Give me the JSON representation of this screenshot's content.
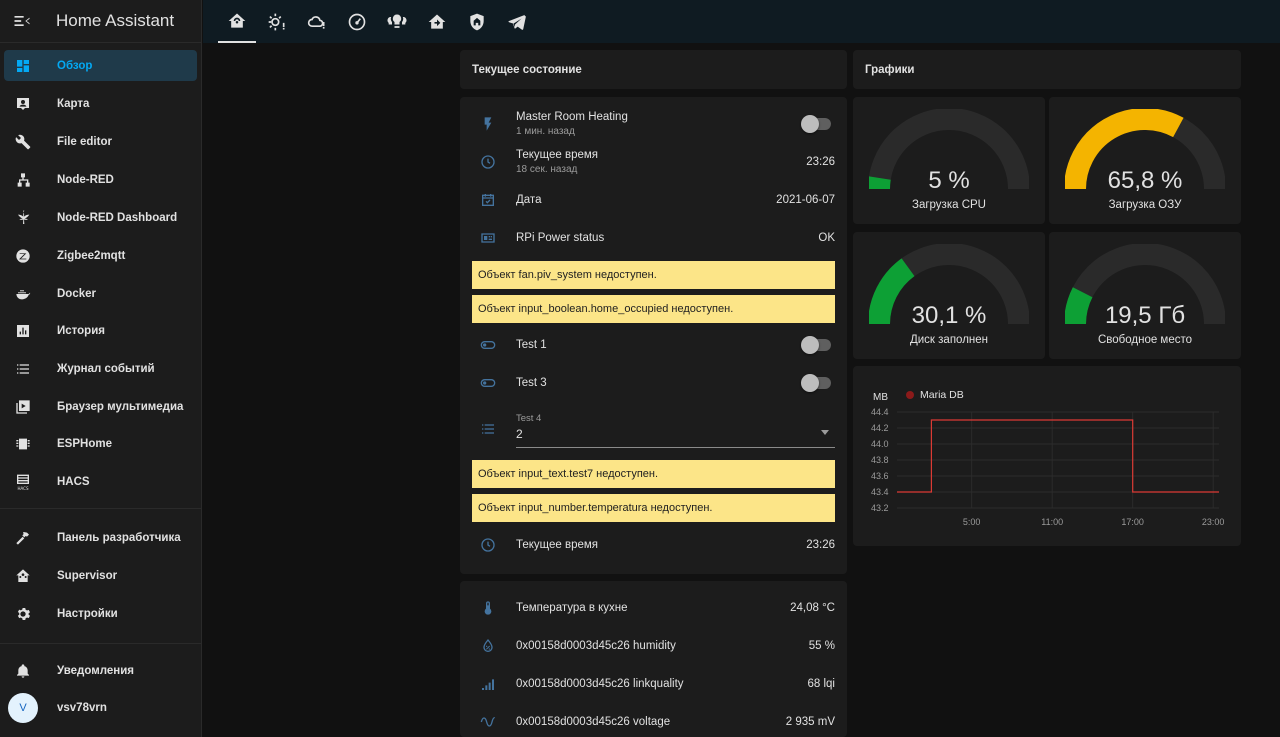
{
  "app": {
    "title": "Home Assistant"
  },
  "sidebar": {
    "items": [
      {
        "label": "Обзор",
        "icon": "dashboard-icon",
        "active": true
      },
      {
        "label": "Карта",
        "icon": "map-account-icon"
      },
      {
        "label": "File editor",
        "icon": "wrench-icon"
      },
      {
        "label": "Node-RED",
        "icon": "sitemap-icon"
      },
      {
        "label": "Node-RED Dashboard",
        "icon": "cannabis-icon"
      },
      {
        "label": "Zigbee2mqtt",
        "icon": "zigbee-icon"
      },
      {
        "label": "Docker",
        "icon": "docker-icon"
      },
      {
        "label": "История",
        "icon": "chart-box-icon"
      },
      {
        "label": "Журнал событий",
        "icon": "format-list-icon"
      },
      {
        "label": "Браузер мультимедиа",
        "icon": "play-box-multiple-icon"
      },
      {
        "label": "ESPHome",
        "icon": "chip-icon"
      },
      {
        "label": "HACS",
        "icon": "hacs-icon"
      }
    ],
    "bottom_items": [
      {
        "label": "Панель разработчика",
        "icon": "hammer-icon"
      },
      {
        "label": "Supervisor",
        "icon": "home-assistant-icon"
      },
      {
        "label": "Настройки",
        "icon": "cog-icon"
      }
    ],
    "notifications": {
      "label": "Уведомления",
      "icon": "bell-icon"
    },
    "user": {
      "name": "vsv78vrn",
      "initial": "V"
    }
  },
  "tabs": [
    {
      "icon": "home-automation-icon",
      "active": true
    },
    {
      "icon": "weather-sunny-alert-icon"
    },
    {
      "icon": "weather-cloudy-alert-icon"
    },
    {
      "icon": "gauge-icon"
    },
    {
      "icon": "lightbulb-group-icon"
    },
    {
      "icon": "home-import-icon"
    },
    {
      "icon": "shield-home-icon"
    },
    {
      "icon": "telegram-icon"
    }
  ],
  "status_section": {
    "title": "Текущее состояние",
    "rows": [
      {
        "name": "Master Room Heating",
        "sub": "1 мин. назад",
        "icon": "flash-icon",
        "toggle": false
      },
      {
        "name": "Текущее время",
        "sub": "18 сек. назад",
        "value": "23:26",
        "icon": "clock-icon"
      },
      {
        "name": "Дата",
        "value": "2021-06-07",
        "icon": "calendar-check-icon"
      },
      {
        "name": "RPi Power status",
        "value": "OK",
        "icon": "raspberry-pi-icon"
      }
    ],
    "warnings": [
      "Объект fan.piv_system недоступен.",
      "Объект input_boolean.home_occupied недоступен.",
      "Объект input_text.test7 недоступен.",
      "Объект input_number.temperatura недоступен."
    ],
    "toggles": [
      {
        "name": "Test 1",
        "icon": "toggle-switch-icon",
        "on": false
      },
      {
        "name": "Test 3",
        "icon": "toggle-switch-icon",
        "on": false
      }
    ],
    "select": {
      "label": "Test 4",
      "value": "2",
      "icon": "format-list-bulleted-icon"
    },
    "last_row": {
      "name": "Текущее время",
      "value": "23:26",
      "icon": "clock-icon"
    }
  },
  "sensors": [
    {
      "name": "Температура в кухне",
      "value": "24,08 °C",
      "icon": "thermometer-icon"
    },
    {
      "name": "0x00158d0003d45c26 humidity",
      "value": "55 %",
      "icon": "water-percent-icon"
    },
    {
      "name": "0x00158d0003d45c26 linkquality",
      "value": "68 lqi",
      "icon": "signal-icon"
    },
    {
      "name": "0x00158d0003d45c26 voltage",
      "value": "2 935 mV",
      "icon": "sine-wave-icon"
    }
  ],
  "graphs_section": {
    "title": "Графики",
    "gauges": [
      {
        "label": "Загрузка CPU",
        "value": "5 %",
        "fraction": 0.05,
        "color": "#0da035"
      },
      {
        "label": "Загрузка ОЗУ",
        "value": "65,8 %",
        "fraction": 0.658,
        "color": "#f4b400"
      },
      {
        "label": "Диск заполнен",
        "value": "30,1 %",
        "fraction": 0.301,
        "color": "#0da035"
      },
      {
        "label": "Свободное место",
        "value": "19,5 Гб",
        "fraction": 0.15,
        "color": "#0da035"
      }
    ]
  },
  "chart_data": {
    "type": "line",
    "ylabel": "MB",
    "y_ticks": [
      "44.4",
      "44.2",
      "44.0",
      "43.8",
      "43.6",
      "43.4",
      "43.2"
    ],
    "x_ticks": [
      "5:00",
      "11:00",
      "17:00",
      "23:00"
    ],
    "ylim": [
      43.2,
      44.4
    ],
    "grid": true,
    "legend": "top-left",
    "series": [
      {
        "name": "Maria DB",
        "color": "#db3a34",
        "points": [
          [
            "23:26",
            43.4
          ],
          [
            "2:00",
            43.4
          ],
          [
            "2:00",
            44.3
          ],
          [
            "17:00",
            44.3
          ],
          [
            "17:00",
            43.4
          ],
          [
            "23:26",
            43.4
          ]
        ]
      }
    ]
  },
  "colors": {
    "accent": "#03a9f4",
    "warning_bg": "#fce588",
    "icon": "#44739e"
  }
}
